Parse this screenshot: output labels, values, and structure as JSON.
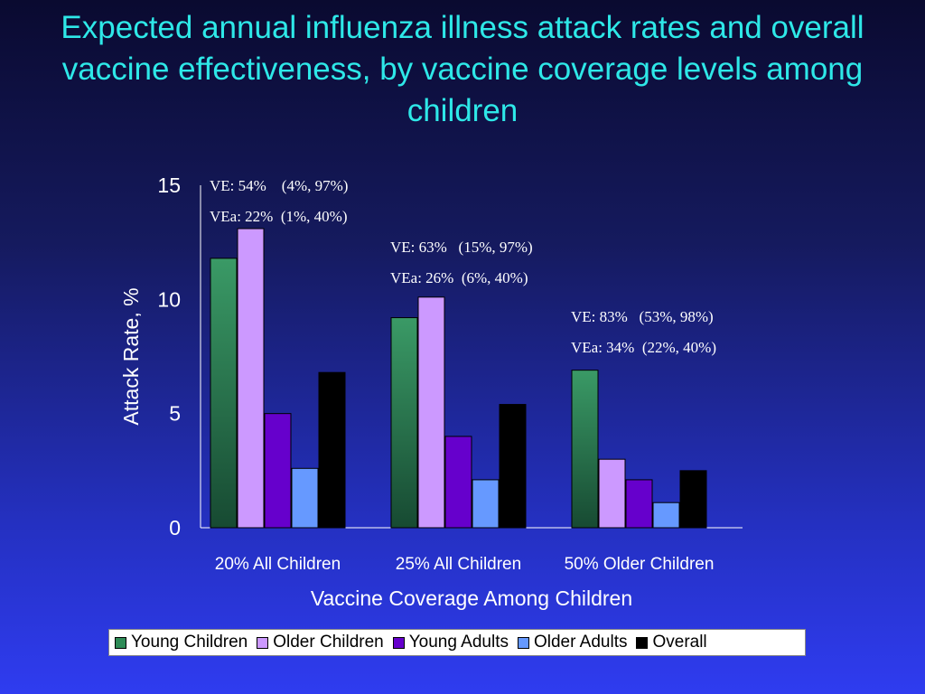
{
  "title": "Expected annual influenza illness attack rates and overall\nvaccine effectiveness, by vaccine coverage levels among\nchildren",
  "chart_data": {
    "type": "bar",
    "title": "Expected annual influenza illness attack rates and overall vaccine effectiveness, by vaccine coverage levels among children",
    "xlabel": "Vaccine Coverage Among Children",
    "ylabel": "Attack Rate, %",
    "ylim": [
      0,
      15
    ],
    "yticks": [
      "0",
      "5",
      "10",
      "15"
    ],
    "categories": [
      "20% All Children",
      "25% All Children",
      "50% Older Children"
    ],
    "series": [
      {
        "name": "Young Children",
        "color": "#2e8b57",
        "values": [
          11.8,
          9.2,
          6.9
        ]
      },
      {
        "name": "Older Children",
        "color": "#cc99ff",
        "values": [
          13.1,
          10.1,
          3.0
        ]
      },
      {
        "name": "Young Adults",
        "color": "#6600cc",
        "values": [
          5.0,
          4.0,
          2.1
        ]
      },
      {
        "name": "Older Adults",
        "color": "#6699ff",
        "values": [
          2.6,
          2.1,
          1.1
        ]
      },
      {
        "name": "Overall",
        "color": "#000000",
        "values": [
          6.8,
          5.4,
          2.5
        ]
      }
    ],
    "annotations": [
      {
        "lines": [
          "VE: 54%    (4%, 97%)",
          "VEa: 22%  (1%, 40%)"
        ],
        "category": 0
      },
      {
        "lines": [
          "VE: 63%   (15%, 97%)",
          "VEa: 26%  (6%, 40%)"
        ],
        "category": 1
      },
      {
        "lines": [
          "VE: 83%   (53%, 98%)",
          "VEa: 34%  (22%, 40%)"
        ],
        "category": 2
      }
    ],
    "grid": false,
    "legend_position": "bottom"
  }
}
